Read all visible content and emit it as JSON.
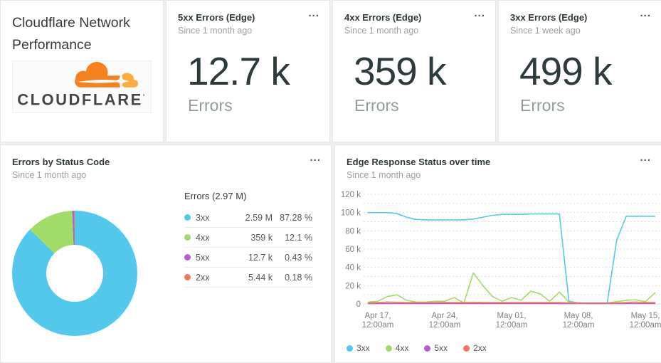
{
  "title_card": {
    "title": "Cloudflare Network Performance",
    "logo_text": "CLOUDFLARE",
    "logo_mark": "’",
    "logo_orange": "#f6821f",
    "logo_light_orange": "#fbad41"
  },
  "stat_cards": [
    {
      "title": "5xx Errors (Edge)",
      "subtitle": "Since 1 month ago",
      "value": "12.7 k",
      "unit": "Errors",
      "menu": "..."
    },
    {
      "title": "4xx Errors (Edge)",
      "subtitle": "Since 1 month ago",
      "value": "359 k",
      "unit": "Errors",
      "menu": "..."
    },
    {
      "title": "3xx Errors (Edge)",
      "subtitle": "Since 1 week ago",
      "value": "499 k",
      "unit": "Errors",
      "menu": "..."
    }
  ],
  "donut_card": {
    "title": "Errors by Status Code",
    "subtitle": "Since 1 month ago",
    "menu": "...",
    "chart_data": {
      "type": "pie",
      "donut": true,
      "title": "Errors by Status Code",
      "total_label": "Errors (2.97 M)",
      "legend_position": "right-table",
      "slices": [
        {
          "label": "3xx",
          "value": 2590000,
          "value_label": "2.59 M",
          "percent_label": "87.28 %",
          "percent": 87.28,
          "color": "#54c8ea"
        },
        {
          "label": "4xx",
          "value": 359000,
          "value_label": "359 k",
          "percent_label": "12.1 %",
          "percent": 12.1,
          "color": "#a1db69"
        },
        {
          "label": "5xx",
          "value": 12700,
          "value_label": "12.7 k",
          "percent_label": "0.43 %",
          "percent": 0.43,
          "color": "#b45fd1"
        },
        {
          "label": "2xx",
          "value": 5440,
          "value_label": "5.44 k",
          "percent_label": "0.18 %",
          "percent": 0.18,
          "color": "#f0765c"
        }
      ]
    }
  },
  "timeseries_card": {
    "title": "Edge Response Status over time",
    "subtitle": "Since 1 month ago",
    "menu": "...",
    "chart_data": {
      "type": "line",
      "title": "Edge Response Status over time",
      "xlabel": "",
      "ylabel": "",
      "ylim_k": [
        0,
        120
      ],
      "grid_step_k": 10,
      "grid": "dashed",
      "ytick_step_k": 20,
      "ytick_labels": [
        "0",
        "20 k",
        "40 k",
        "60 k",
        "80 k",
        "100 k",
        "120 k"
      ],
      "x_ticks": [
        {
          "day": 2,
          "line1": "Apr 17,",
          "line2": "12:00am"
        },
        {
          "day": 9,
          "line1": "Apr 24,",
          "line2": "12:00am"
        },
        {
          "day": 16,
          "line1": "May 01,",
          "line2": "12:00am"
        },
        {
          "day": 23,
          "line1": "May 08,",
          "line2": "12:00am"
        },
        {
          "day": 30,
          "line1": "May 15,",
          "line2": "12:00am"
        }
      ],
      "days": [
        1,
        2,
        3,
        4,
        5,
        6,
        7,
        8,
        9,
        10,
        11,
        12,
        13,
        14,
        15,
        16,
        17,
        18,
        19,
        20,
        21,
        22,
        23,
        24,
        25,
        26,
        27,
        28,
        29,
        30,
        31
      ],
      "series": [
        {
          "name": "3xx",
          "color": "#54c8ea",
          "values_k": [
            100,
            100,
            100,
            99,
            95,
            92.5,
            92,
            92,
            92,
            92,
            92,
            93,
            95,
            97,
            98,
            98,
            98,
            98.5,
            98.5,
            98.5,
            98.5,
            3,
            1,
            0.5,
            0.5,
            0.5,
            70,
            96,
            96,
            96,
            96
          ]
        },
        {
          "name": "4xx",
          "color": "#a1db69",
          "values_k": [
            2,
            3,
            8,
            10,
            4,
            2,
            2,
            3,
            3,
            7,
            1,
            34,
            20,
            8,
            3,
            7,
            4,
            14,
            11,
            3,
            13,
            2,
            1,
            0.5,
            0.5,
            1,
            2.5,
            4,
            4.5,
            2.5,
            12
          ]
        },
        {
          "name": "5xx",
          "color": "#b45fd1",
          "values_k": [
            0.4,
            0.4,
            0.4,
            0.4,
            0.4,
            0.4,
            0.4,
            0.4,
            0.4,
            0.4,
            0.4,
            0.4,
            0.4,
            0.4,
            0.4,
            0.4,
            0.4,
            0.4,
            0.4,
            0.4,
            0.4,
            0.4,
            0.4,
            0.4,
            0.4,
            0.4,
            0.4,
            0.4,
            0.4,
            0.4,
            0.4
          ]
        },
        {
          "name": "2xx",
          "color": "#f0765c",
          "values_k": [
            1,
            1.5,
            2,
            1.8,
            1.5,
            1.5,
            1.5,
            1.5,
            1.8,
            1.5,
            1.5,
            1.8,
            1.5,
            1.5,
            1.5,
            1.5,
            1.5,
            1.5,
            1.5,
            1.5,
            1.5,
            1.2,
            1,
            1,
            1,
            1,
            1.2,
            1.5,
            2,
            1.5,
            1.5
          ]
        }
      ],
      "legend": [
        "3xx",
        "4xx",
        "5xx",
        "2xx"
      ]
    }
  }
}
